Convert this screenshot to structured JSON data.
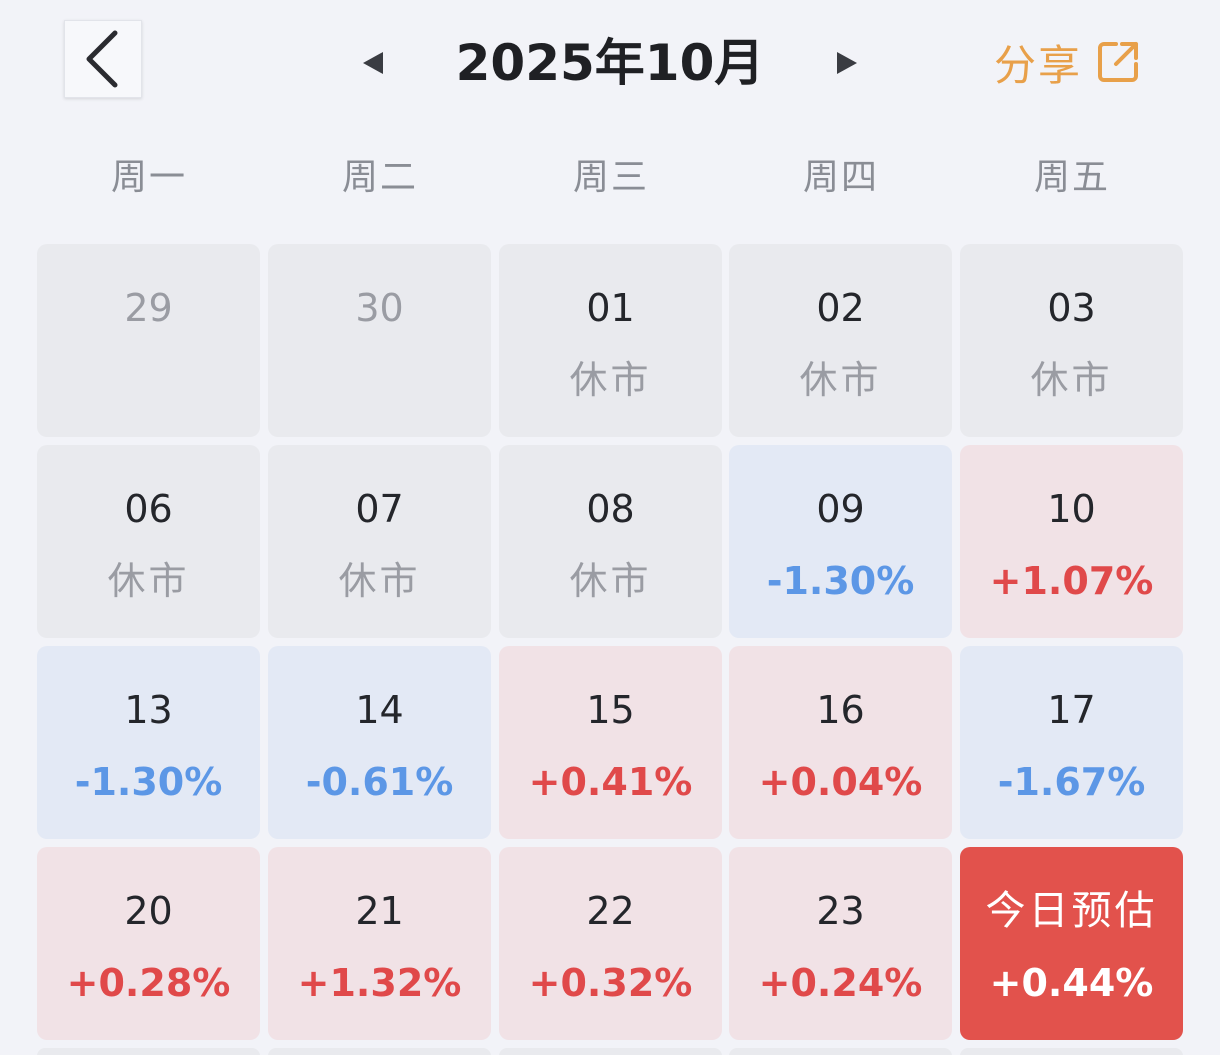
{
  "header": {
    "back_icon": "chevron-left-icon",
    "prev_icon": "triangle-left-icon",
    "next_icon": "triangle-right-icon",
    "title": "2025年10月",
    "share_label": "分享",
    "share_icon": "external-link-icon",
    "share_color": "#e8a04a"
  },
  "weekdays": [
    "周一",
    "周二",
    "周三",
    "周四",
    "周五"
  ],
  "colors": {
    "up": "#e0494a",
    "down": "#5c97e6",
    "closed_bg": "#e9eaee",
    "up_bg": "#f1e2e6",
    "down_bg": "#e3e9f5",
    "today_bg": "#e2524c"
  },
  "weeks": [
    [
      {
        "day": "29",
        "value": ""
      },
      {
        "day": "30",
        "value": ""
      },
      {
        "day": "01",
        "value": "休市"
      },
      {
        "day": "02",
        "value": "休市"
      },
      {
        "day": "03",
        "value": "休市"
      }
    ],
    [
      {
        "day": "06",
        "value": "休市"
      },
      {
        "day": "07",
        "value": "休市"
      },
      {
        "day": "08",
        "value": "休市"
      },
      {
        "day": "09",
        "value": "-1.30%"
      },
      {
        "day": "10",
        "value": "+1.07%"
      }
    ],
    [
      {
        "day": "13",
        "value": "-1.30%"
      },
      {
        "day": "14",
        "value": "-0.61%"
      },
      {
        "day": "15",
        "value": "+0.41%"
      },
      {
        "day": "16",
        "value": "+0.04%"
      },
      {
        "day": "17",
        "value": "-1.67%"
      }
    ],
    [
      {
        "day": "20",
        "value": "+0.28%"
      },
      {
        "day": "21",
        "value": "+1.32%"
      },
      {
        "day": "22",
        "value": "+0.32%"
      },
      {
        "day": "23",
        "value": "+0.24%"
      },
      {
        "day": "今日预估",
        "value": "+0.44%"
      }
    ]
  ]
}
